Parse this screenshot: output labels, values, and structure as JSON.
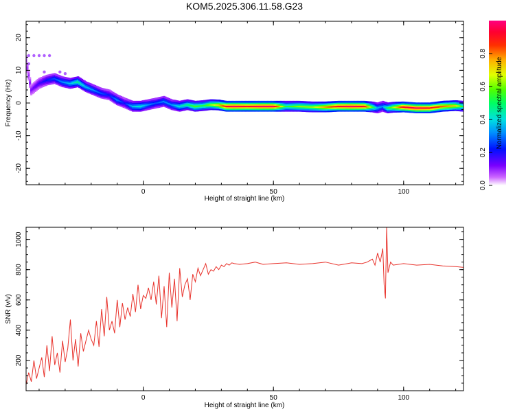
{
  "figure": {
    "title": "KOM5.2025.306.11.58.G23"
  },
  "chart_data": [
    {
      "type": "scatter",
      "xlabel": "Height of straight line (km)",
      "ylabel": "Frequency (Hz)",
      "xlim": [
        -45,
        123
      ],
      "ylim": [
        -25,
        25
      ],
      "xticks": [
        "0",
        "50",
        "100"
      ],
      "yticks": [
        "-20",
        "-10",
        "0",
        "10",
        "20"
      ],
      "colorbar": {
        "label": "Normalized spectral amplitude",
        "range": [
          0,
          1
        ],
        "ticks": [
          "0.0",
          "0.2",
          "0.4",
          "0.6",
          "0.8"
        ]
      },
      "track": {
        "x": [
          -45,
          -43,
          -40,
          -37,
          -34,
          -31,
          -28,
          -25,
          -22,
          -19,
          -16,
          -13,
          -10,
          -7,
          -4,
          -1,
          2,
          5,
          8,
          11,
          14,
          17,
          20,
          23,
          26,
          29,
          32,
          35,
          40,
          45,
          50,
          55,
          60,
          65,
          70,
          75,
          80,
          85,
          88,
          90,
          92,
          94,
          96,
          100,
          105,
          110,
          115,
          120,
          123
        ],
        "y": [
          13,
          4,
          6,
          7,
          7.5,
          6.5,
          6,
          6.5,
          5,
          4,
          3,
          2.5,
          1,
          0,
          -1,
          -1,
          -0.5,
          0,
          0.5,
          -0.5,
          -1,
          -0.5,
          -1,
          -0.8,
          -0.5,
          -0.6,
          -1,
          -1,
          -1,
          -1,
          -1,
          -1,
          -1,
          -1.2,
          -1.2,
          -1,
          -1,
          -1,
          -1.2,
          -1.5,
          -1,
          -1.5,
          -1.3,
          -1.2,
          -1.5,
          -1.5,
          -1,
          -0.8,
          -1
        ]
      },
      "track_amplitude": [
        0.05,
        0.1,
        0.15,
        0.2,
        0.25,
        0.3,
        0.35,
        0.45,
        0.35,
        0.3,
        0.25,
        0.2,
        0.3,
        0.2,
        0.35,
        0.4,
        0.3,
        0.25,
        0.3,
        0.3,
        0.4,
        0.45,
        0.55,
        0.5,
        0.6,
        0.7,
        0.9,
        0.95,
        0.9,
        0.95,
        0.95,
        0.5,
        0.6,
        0.6,
        0.75,
        0.9,
        0.95,
        0.9,
        0.55,
        0.35,
        0.3,
        0.5,
        0.6,
        0.9,
        0.95,
        0.9,
        0.8,
        0.7,
        0.5
      ],
      "outliers": [
        {
          "x": -44,
          "y": 14.5
        },
        {
          "x": -42,
          "y": 14.5
        },
        {
          "x": -40,
          "y": 14.5
        },
        {
          "x": -38,
          "y": 14.5
        },
        {
          "x": -36,
          "y": 14.5
        },
        {
          "x": -44,
          "y": 12
        },
        {
          "x": -38,
          "y": 9.5
        },
        {
          "x": -32,
          "y": 9.5
        },
        {
          "x": -30,
          "y": 9
        }
      ]
    },
    {
      "type": "line",
      "xlabel": "Height of straight line (km)",
      "ylabel": "SNR (v/v)",
      "xlim": [
        -45,
        123
      ],
      "ylim": [
        0,
        1080
      ],
      "xticks": [
        "0",
        "50",
        "100"
      ],
      "yticks": [
        "200",
        "400",
        "600",
        "800",
        "1000"
      ],
      "series": [
        {
          "color": "#e8312a",
          "x": [
            -45,
            -44,
            -43,
            -42,
            -41,
            -40,
            -39,
            -38,
            -37,
            -36,
            -35,
            -34,
            -33,
            -32,
            -31,
            -30,
            -29,
            -28,
            -27,
            -26,
            -25,
            -24,
            -23,
            -22,
            -21,
            -20,
            -19,
            -18,
            -17,
            -16,
            -15,
            -14,
            -13,
            -12,
            -11,
            -10,
            -9,
            -8,
            -7,
            -6,
            -5,
            -4,
            -3,
            -2,
            -1,
            0,
            1,
            2,
            3,
            4,
            5,
            6,
            7,
            8,
            9,
            10,
            11,
            12,
            13,
            14,
            15,
            16,
            17,
            18,
            19,
            20,
            21,
            22,
            23,
            24,
            25,
            26,
            27,
            28,
            29,
            30,
            31,
            32,
            33,
            34,
            35,
            37,
            40,
            43,
            46,
            50,
            55,
            60,
            65,
            70,
            75,
            80,
            84,
            86,
            88,
            89,
            90,
            91,
            92,
            92.5,
            93,
            93.5,
            94,
            95,
            96,
            100,
            105,
            110,
            115,
            120,
            123
          ],
          "y": [
            40,
            120,
            60,
            200,
            80,
            150,
            220,
            90,
            300,
            130,
            360,
            170,
            250,
            120,
            330,
            190,
            280,
            470,
            200,
            340,
            160,
            380,
            260,
            330,
            400,
            340,
            300,
            460,
            290,
            540,
            360,
            620,
            400,
            460,
            380,
            600,
            420,
            580,
            470,
            550,
            490,
            640,
            520,
            700,
            540,
            630,
            610,
            680,
            600,
            720,
            570,
            760,
            480,
            690,
            420,
            780,
            550,
            740,
            460,
            810,
            620,
            700,
            740,
            600,
            770,
            720,
            810,
            760,
            800,
            840,
            770,
            800,
            790,
            820,
            800,
            830,
            820,
            840,
            830,
            845,
            840,
            835,
            840,
            850,
            835,
            840,
            845,
            835,
            840,
            850,
            830,
            845,
            840,
            850,
            870,
            830,
            910,
            850,
            940,
            700,
            610,
            1080,
            780,
            850,
            830,
            840,
            830,
            835,
            825,
            820,
            815
          ]
        }
      ]
    }
  ]
}
